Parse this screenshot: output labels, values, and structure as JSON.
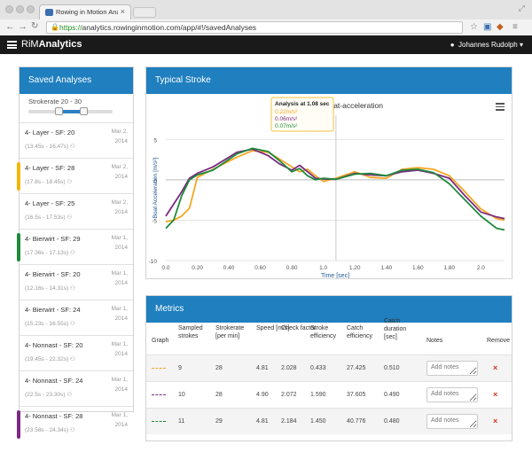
{
  "browser": {
    "tab_title": "Rowing in Motion Analytic",
    "url_secure": "https://",
    "url_rest": "analytics.rowinginmotion.com/app/#!/savedAnalyses"
  },
  "header": {
    "brand_prefix": "RiM",
    "brand_suffix": "Analytics",
    "user_name": "Johannes Rudolph",
    "caret": "▾",
    "user_icon": "user-icon"
  },
  "saved": {
    "title": "Saved Analyses",
    "slider_label": "Strokerate 20 - 30",
    "items": [
      {
        "name": "4- Layer - SF: 20",
        "range": "(13.45s - 16.47s)",
        "date": "Mar 2,",
        "year": "2014",
        "marker": ""
      },
      {
        "name": "4- Layer - SF: 28",
        "range": "(17.8s - 18.45s)",
        "date": "Mar 2,",
        "year": "2014",
        "marker": "#f2b705"
      },
      {
        "name": "4- Layer - SF: 25",
        "range": "(16.5s - 17.53s)",
        "date": "Mar 2,",
        "year": "2014",
        "marker": ""
      },
      {
        "name": "4- Bierwirt - SF: 29",
        "range": "(17.36s - 17.13s)",
        "date": "Mar 1,",
        "year": "2014",
        "marker": "#1e8a3c"
      },
      {
        "name": "4- Bierwirt - SF: 20",
        "range": "(12.16s - 14.31s)",
        "date": "Mar 1,",
        "year": "2014",
        "marker": ""
      },
      {
        "name": "4- Bierwirt - SF: 24",
        "range": "(15.23s - 16.55s)",
        "date": "Mar 1,",
        "year": "2014",
        "marker": ""
      },
      {
        "name": "4- Nonnast - SF: 20",
        "range": "(19.45s - 22.32s)",
        "date": "Mar 1,",
        "year": "2014",
        "marker": ""
      },
      {
        "name": "4- Nonnast - SF: 24",
        "range": "(22.5s - 23.30s)",
        "date": "Mar 1,",
        "year": "2014",
        "marker": ""
      },
      {
        "name": "4- Nonnast - SF: 28",
        "range": "(23.58s - 24.34s)",
        "date": "Mar 1,",
        "year": "2014",
        "marker": "#7b2a82"
      }
    ]
  },
  "typical": {
    "title": "Typical Stroke"
  },
  "chart_data": {
    "type": "line",
    "title": "Typical Stroke Boat-acceleration",
    "xlabel": "Time [sec]",
    "ylabel": "Boat Acceleration [m/s²]",
    "xlim": [
      0,
      2.15
    ],
    "ylim": [
      -10,
      8
    ],
    "xticks": [
      "0.0",
      "0.20",
      "0.40",
      "0.60",
      "0.80",
      "1.0",
      "1.20",
      "1.40",
      "1.60",
      "1.80",
      "2.0"
    ],
    "yticks": [
      "5",
      "0",
      "-5",
      "-10"
    ],
    "tooltip": {
      "title": "Analysis at 1.08 sec",
      "lines": [
        {
          "text": "0.22m/s²",
          "color": "#f5a623"
        },
        {
          "text": "0.06m/s²",
          "color": "#7b2a82"
        },
        {
          "text": "0.07m/s²",
          "color": "#1e8a3c"
        }
      ]
    },
    "series": [
      {
        "color": "#f5a623",
        "x": [
          0.0,
          0.05,
          0.1,
          0.15,
          0.2,
          0.3,
          0.45,
          0.55,
          0.65,
          0.72,
          0.8,
          0.85,
          0.9,
          0.95,
          1.0,
          1.08,
          1.2,
          1.3,
          1.4,
          1.5,
          1.6,
          1.7,
          1.8,
          1.9,
          2.0,
          2.1,
          2.15
        ],
        "y": [
          -5.2,
          -5.0,
          -4.5,
          -3.5,
          0.3,
          1.3,
          2.8,
          3.6,
          3.4,
          2.6,
          1.6,
          1.0,
          1.3,
          0.5,
          -0.2,
          0.2,
          1.0,
          0.3,
          0.2,
          1.3,
          1.5,
          1.3,
          0.5,
          -1.5,
          -3.6,
          -4.8,
          -5.0
        ]
      },
      {
        "color": "#7b2a82",
        "x": [
          0.0,
          0.05,
          0.1,
          0.15,
          0.2,
          0.3,
          0.45,
          0.55,
          0.65,
          0.72,
          0.8,
          0.85,
          0.9,
          0.95,
          1.0,
          1.08,
          1.2,
          1.3,
          1.4,
          1.5,
          1.6,
          1.7,
          1.8,
          1.9,
          2.0,
          2.1,
          2.15
        ],
        "y": [
          -4.5,
          -3.0,
          -1.5,
          0.2,
          0.8,
          1.6,
          3.4,
          3.8,
          3.0,
          2.0,
          1.2,
          1.8,
          1.0,
          0.2,
          0.1,
          0.06,
          0.8,
          0.6,
          0.5,
          1.0,
          1.2,
          0.8,
          0.2,
          -2.0,
          -4.0,
          -4.6,
          -4.8
        ]
      },
      {
        "color": "#1e8a3c",
        "x": [
          0.0,
          0.05,
          0.1,
          0.15,
          0.2,
          0.3,
          0.45,
          0.55,
          0.65,
          0.72,
          0.8,
          0.85,
          0.9,
          0.95,
          1.0,
          1.08,
          1.2,
          1.3,
          1.4,
          1.5,
          1.6,
          1.7,
          1.8,
          1.9,
          2.0,
          2.1,
          2.15
        ],
        "y": [
          -6.0,
          -5.0,
          -2.0,
          0.0,
          0.6,
          1.2,
          3.2,
          3.9,
          3.5,
          2.4,
          1.0,
          1.4,
          0.5,
          0.0,
          0.2,
          0.07,
          0.7,
          0.8,
          0.5,
          1.2,
          1.3,
          0.9,
          -0.5,
          -2.5,
          -4.5,
          -6.0,
          -6.2
        ]
      }
    ]
  },
  "metrics": {
    "title": "Metrics",
    "headers": [
      "Graph",
      "Sampled strokes",
      "Strokerate [per min]",
      "Speed [m/s]",
      "Check factor",
      "Stroke efficiency",
      "Catch efficiency",
      "Catch duration [sec]",
      "Notes",
      "Remove"
    ],
    "rows": [
      {
        "color": "#f5a623",
        "strokes": "9",
        "rate": "28",
        "speed": "4.81",
        "check": "2.028",
        "stroke_eff": "0.433",
        "catch_eff": "27.425",
        "catch_dur": "0.510"
      },
      {
        "color": "#7b2a82",
        "strokes": "10",
        "rate": "28",
        "speed": "4.90",
        "check": "2.072",
        "stroke_eff": "1.590",
        "catch_eff": "37.605",
        "catch_dur": "0.490"
      },
      {
        "color": "#1e8a3c",
        "strokes": "11",
        "rate": "29",
        "speed": "4.81",
        "check": "2.184",
        "stroke_eff": "1.450",
        "catch_eff": "40.776",
        "catch_dur": "0.480"
      }
    ],
    "notes_placeholder": "Add notes",
    "remove_glyph": "×"
  }
}
